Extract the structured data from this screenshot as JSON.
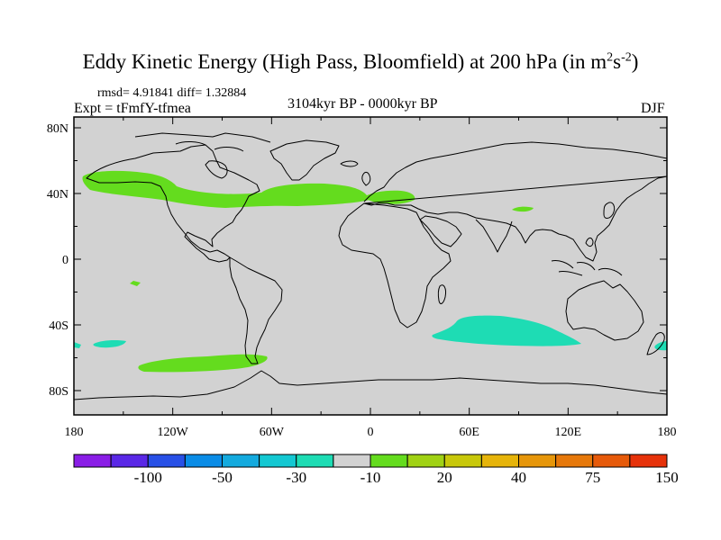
{
  "title_main": "Eddy Kinetic Energy (High Pass, Bloomfield) at 200 hPa (in m",
  "title_unit_a": "2",
  "title_unit_mid": "s",
  "title_unit_b": "-2",
  "title_close": ")",
  "stats": "rmsd= 4.91841 diff= 1.32884",
  "experiment": "Expt = tFmfY-tfmea",
  "period": "3104kyr BP - 0000kyr BP",
  "season": "DJF",
  "axes": {
    "lat_labels": [
      "80N",
      "40N",
      "0",
      "40S",
      "80S"
    ],
    "lon_labels": [
      "180",
      "120W",
      "60W",
      "0",
      "60E",
      "120E",
      "180"
    ]
  },
  "colorbar": {
    "colors": [
      "#8a1ee6",
      "#5a28e6",
      "#2850e6",
      "#0a8ce6",
      "#14aade",
      "#14c8d2",
      "#1edcb4",
      "#d2d2d2",
      "#64dc1e",
      "#a0d214",
      "#c8c80a",
      "#e6b40a",
      "#e6960a",
      "#e6780a",
      "#e65a0a",
      "#e6320a"
    ],
    "labels": [
      "-100",
      "-50",
      "-30",
      "-10",
      "20",
      "40",
      "75",
      "150"
    ]
  },
  "map_legend": {
    "positive_color": "#64dc1e",
    "negative_color": "#1edcb4",
    "ocean_color": "#d2d2d2"
  }
}
